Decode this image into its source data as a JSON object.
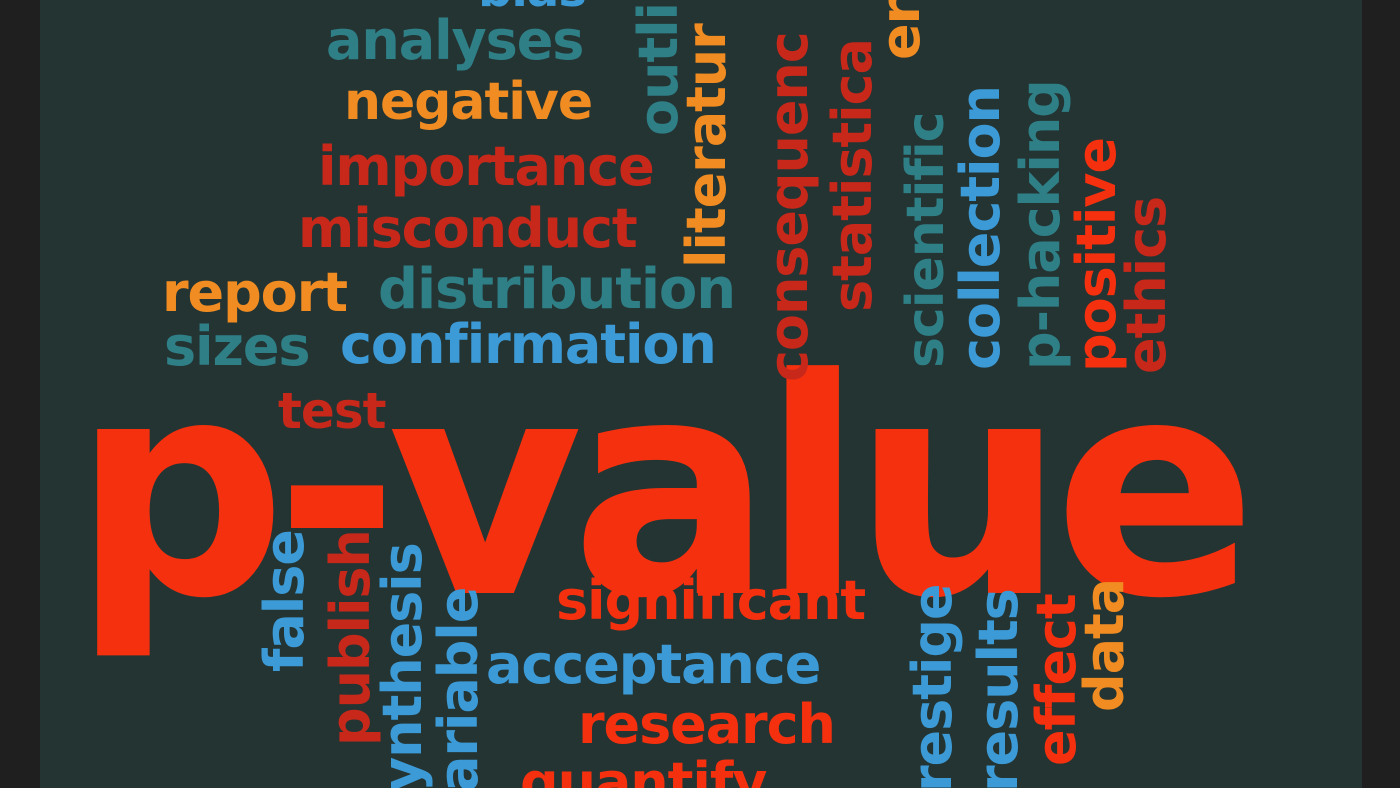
{
  "colors": {
    "background": "#243433",
    "frame": "#1f1f1f",
    "red_bright": "#f5300e",
    "red_dark": "#c8281a",
    "orange": "#f08c22",
    "teal": "#2f7f87",
    "blue": "#3c9ad6"
  },
  "words": {
    "p_value": "p-value",
    "bias": "bias",
    "analyses": "analyses",
    "negative": "negative",
    "importance": "importance",
    "misconduct": "misconduct",
    "report": "report",
    "distribution": "distribution",
    "sizes": "sizes",
    "confirmation": "confirmation",
    "test": "test",
    "outliers": "outli",
    "literature": "literatur",
    "consequence": "consequenc",
    "statistical": "statistica",
    "error": "er",
    "scientific": "scientific",
    "collection": "collection",
    "p_hacking": "p-hacking",
    "positive": "positive",
    "ethics": "ethics",
    "false": "false",
    "publish": "publish",
    "hypothesis": "ynthesis",
    "variable": "ariable",
    "significant": "significant",
    "acceptance": "acceptance",
    "research": "research",
    "quantify": "quantify",
    "prestige": "restige",
    "results": "results",
    "effect": "effect",
    "data": "data"
  }
}
